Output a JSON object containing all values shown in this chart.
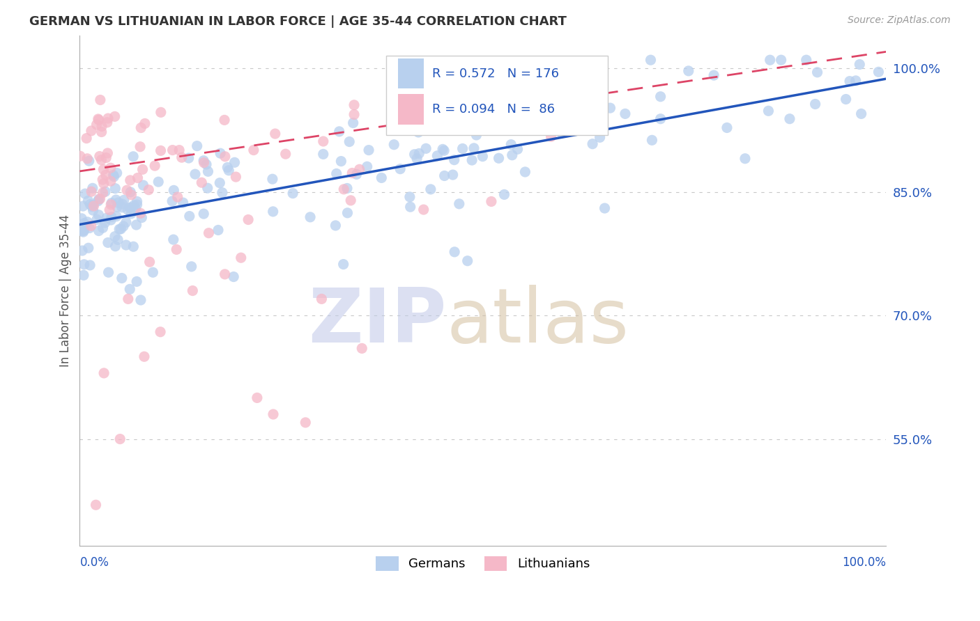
{
  "title": "GERMAN VS LITHUANIAN IN LABOR FORCE | AGE 35-44 CORRELATION CHART",
  "source": "Source: ZipAtlas.com",
  "ylabel": "In Labor Force | Age 35-44",
  "blue_R": 0.572,
  "blue_N": 176,
  "pink_R": 0.094,
  "pink_N": 86,
  "blue_color": "#b8d0ee",
  "pink_color": "#f5b8c8",
  "blue_line_color": "#2255bb",
  "pink_line_color": "#dd4466",
  "right_yticks": [
    0.55,
    0.7,
    0.85,
    1.0
  ],
  "right_yticklabels": [
    "55.0%",
    "70.0%",
    "85.0%",
    "100.0%"
  ],
  "background_color": "#ffffff",
  "grid_color": "#c8c8c8",
  "title_color": "#333333",
  "zip_color": "#c0c8e8",
  "atlas_color": "#d4c0a0",
  "ymin": 0.42,
  "ymax": 1.04,
  "xmin": 0.0,
  "xmax": 1.0,
  "marker_size": 120,
  "blue_trend_intercept": 0.82,
  "blue_trend_slope": 0.165,
  "pink_trend_intercept": 0.87,
  "pink_trend_slope": 0.1
}
